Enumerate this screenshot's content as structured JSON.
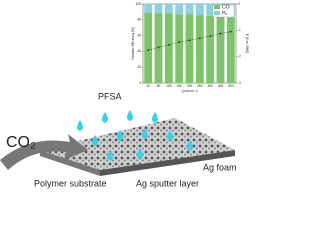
{
  "chart_data": {
    "type": "bar",
    "stacked": true,
    "x_label": "j [mA cm⁻²]",
    "y_label": "Faradaic Efficiency [%]",
    "y2_label": "E [V vs. RHE]",
    "categories": [
      "10",
      "50",
      "100",
      "150",
      "200",
      "250",
      "300",
      "400",
      "500"
    ],
    "series": [
      {
        "name": "CO",
        "color": "#7cc36a",
        "values": [
          89,
          88,
          88,
          87,
          87,
          86,
          85,
          84,
          83
        ]
      },
      {
        "name": "H₂",
        "color": "#8fd0e0",
        "values": [
          11,
          12,
          12,
          13,
          13,
          14,
          15,
          16,
          17
        ]
      },
      {
        "name": "E",
        "type": "line",
        "axis": "y2",
        "color": "#333333",
        "values": [
          -1.75,
          -1.65,
          -1.55,
          -1.45,
          -1.38,
          -1.3,
          -1.22,
          -1.12,
          -1.05
        ]
      }
    ],
    "ylim": [
      0,
      100
    ],
    "yticks": [
      0,
      20,
      40,
      60,
      80,
      100
    ],
    "y2lim": [
      -3,
      0
    ],
    "y2ticks": [
      -3,
      -2,
      -1,
      0
    ],
    "legend": "top-right"
  },
  "labels": {
    "pfsa": "PFSA",
    "co2": "CO₂",
    "ag_foam": "Ag foam",
    "polymer": "Polymer substrate",
    "sputter": "Ag sputter layer"
  }
}
